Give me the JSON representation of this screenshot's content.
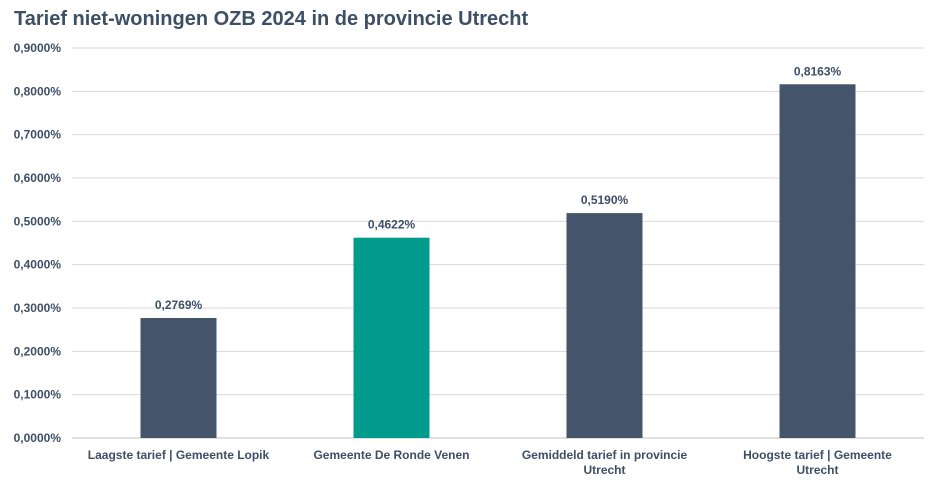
{
  "chart_data": {
    "type": "bar",
    "title": "Tarief niet-woningen OZB 2024 in de provincie Utrecht",
    "categories": [
      [
        "Laagste tarief | Gemeente Lopik"
      ],
      [
        "Gemeente De Ronde Venen"
      ],
      [
        "Gemiddeld tarief in provincie",
        "Utrecht"
      ],
      [
        "Hoogste tarief | Gemeente",
        "Utrecht"
      ]
    ],
    "values": [
      0.2769,
      0.4622,
      0.519,
      0.8163
    ],
    "data_labels": [
      "0,2769%",
      "0,4622%",
      "0,5190%",
      "0,8163%"
    ],
    "bar_colors": [
      "#44546a",
      "#009b8d",
      "#44546a",
      "#44546a"
    ],
    "ylim": [
      0,
      0.9
    ],
    "yticks": [
      0,
      0.1,
      0.2,
      0.3,
      0.4,
      0.5,
      0.6,
      0.7,
      0.8,
      0.9
    ],
    "ytick_labels": [
      "0,0000%",
      "0,1000%",
      "0,2000%",
      "0,3000%",
      "0,4000%",
      "0,5000%",
      "0,6000%",
      "0,7000%",
      "0,8000%",
      "0,9000%"
    ],
    "xlabel": "",
    "ylabel": "",
    "grid": true,
    "legend": "none",
    "colors": {
      "text": "#3d4f66",
      "grid": "#d9d9d9",
      "axis": "#bfbfbf"
    }
  }
}
